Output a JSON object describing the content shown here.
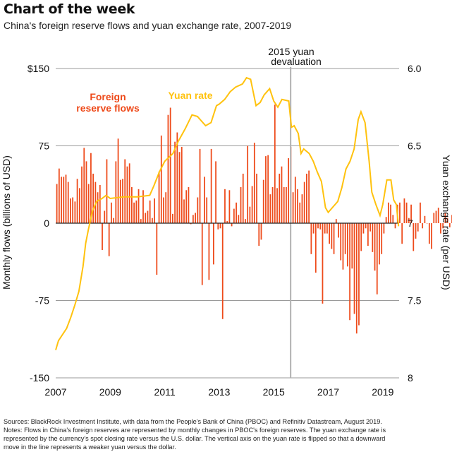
{
  "header": {
    "title": "Chart of the week",
    "subtitle": "China's foreign reserve flows and yuan exchange rate, 2007-2019"
  },
  "footnote": {
    "line1": "Sources: BlackRock Investment Institute, with data from the People's Bank of China (PBOC) and Refinitiv Datastream, August 2019.",
    "line2": "Notes: Flows in China's foreign reserves are represented by monthly changes in PBOC's foreign reserves. The yuan exchange rate is",
    "line3": "represented by the currency's spot closing rate versus the U.S. dollar. The vertical axis on the yuan rate is flipped so that a downward",
    "line4": "move in the line represents a weaker yuan versus the dollar."
  },
  "colors": {
    "reserve_bars": "#ee4a1a",
    "reserve_label": "#ee4a1a",
    "yuan_line": "#ffc20e",
    "yuan_label": "#ffc20e",
    "grid": "#9a9a9a",
    "zero_line": "#222222",
    "devaluation_line": "#b0b0b0"
  },
  "chart_data": {
    "type": "bar+line",
    "title": "China's foreign reserve flows and yuan exchange rate, 2007-2019",
    "xlabel": "",
    "x_ticks": [
      "2007",
      "2009",
      "2011",
      "2013",
      "2015",
      "2017",
      "2019"
    ],
    "x_range": [
      2007,
      2019.6
    ],
    "left_axis": {
      "label": "Monthly flows (billions of USD)",
      "ticks": [
        150,
        75,
        0,
        -75,
        -150
      ],
      "tick_labels": [
        "$150",
        "75",
        "0",
        "-75",
        "-150"
      ],
      "range": [
        -150,
        150
      ]
    },
    "right_axis": {
      "label": "Yuan exchange rate (per USD)",
      "ticks": [
        6.0,
        6.5,
        7.0,
        7.5,
        8.0
      ],
      "tick_labels": [
        "6.0",
        "6.5",
        "7",
        "7.5",
        "8"
      ],
      "range": [
        6.0,
        8.0
      ],
      "inverted": true
    },
    "annotation": {
      "label_line1": "2015 yuan",
      "label_line2": "devaluation",
      "x": 2015.62
    },
    "grid": "horizontal",
    "series": [
      {
        "name": "Foreign reserve flows",
        "type": "bar",
        "axis": "left",
        "start": 2007.0,
        "step_months": 1,
        "values": [
          38,
          53,
          45,
          45,
          47,
          40,
          24,
          25,
          21,
          43,
          34,
          55,
          73,
          60,
          38,
          68,
          48,
          40,
          30,
          37,
          -26,
          12,
          62,
          -32,
          20,
          5,
          60,
          82,
          42,
          43,
          62,
          55,
          58,
          35,
          20,
          22,
          33,
          4,
          32,
          10,
          12,
          22,
          5,
          24,
          -50,
          50,
          85,
          25,
          30,
          105,
          112,
          9,
          79,
          88,
          69,
          74,
          23,
          32,
          35,
          -1,
          8,
          10,
          25,
          72,
          -60,
          45,
          25,
          -55,
          72,
          -40,
          60,
          -6,
          -5,
          -93,
          33,
          2,
          32,
          -3,
          14,
          20,
          8,
          35,
          48,
          4,
          75,
          16,
          36,
          78,
          48,
          -22,
          -16,
          42,
          65,
          66,
          28,
          35,
          115,
          34,
          48,
          55,
          35,
          35,
          63,
          74,
          30,
          45,
          33,
          20,
          28,
          40,
          48,
          51,
          -30,
          -10,
          -48,
          -5,
          -6,
          -78,
          -10,
          -10,
          -20,
          -25,
          -30,
          4,
          -14,
          -36,
          -45,
          -30,
          -42,
          -94,
          -44,
          -88,
          -107,
          -99,
          -27,
          -10,
          -5,
          -22,
          -8,
          -28,
          -46,
          -69,
          -40,
          -30,
          -10,
          6,
          20,
          18,
          8,
          -5,
          18,
          20,
          -20,
          24,
          20,
          5,
          18,
          -27,
          -15,
          -8,
          20,
          -5,
          7,
          0,
          -20,
          -25,
          10,
          12,
          15,
          -10,
          -5,
          10,
          5,
          -4,
          8,
          -15
        ]
      },
      {
        "name": "Yuan rate",
        "type": "line",
        "axis": "right",
        "points": [
          [
            2007.0,
            7.82
          ],
          [
            2007.1,
            7.76
          ],
          [
            2007.25,
            7.72
          ],
          [
            2007.4,
            7.68
          ],
          [
            2007.55,
            7.61
          ],
          [
            2007.7,
            7.53
          ],
          [
            2007.85,
            7.44
          ],
          [
            2008.0,
            7.28
          ],
          [
            2008.1,
            7.13
          ],
          [
            2008.2,
            7.04
          ],
          [
            2008.35,
            6.92
          ],
          [
            2008.5,
            6.86
          ],
          [
            2008.7,
            6.84
          ],
          [
            2008.85,
            6.82
          ],
          [
            2009.0,
            6.84
          ],
          [
            2009.5,
            6.83
          ],
          [
            2010.0,
            6.83
          ],
          [
            2010.45,
            6.82
          ],
          [
            2010.6,
            6.76
          ],
          [
            2010.8,
            6.67
          ],
          [
            2011.0,
            6.6
          ],
          [
            2011.3,
            6.55
          ],
          [
            2011.5,
            6.47
          ],
          [
            2011.75,
            6.39
          ],
          [
            2012.0,
            6.3
          ],
          [
            2012.2,
            6.31
          ],
          [
            2012.5,
            6.37
          ],
          [
            2012.7,
            6.35
          ],
          [
            2012.9,
            6.24
          ],
          [
            2013.0,
            6.23
          ],
          [
            2013.2,
            6.2
          ],
          [
            2013.4,
            6.15
          ],
          [
            2013.6,
            6.12
          ],
          [
            2013.85,
            6.1
          ],
          [
            2014.0,
            6.06
          ],
          [
            2014.15,
            6.07
          ],
          [
            2014.35,
            6.24
          ],
          [
            2014.5,
            6.22
          ],
          [
            2014.65,
            6.17
          ],
          [
            2014.85,
            6.13
          ],
          [
            2015.0,
            6.21
          ],
          [
            2015.15,
            6.25
          ],
          [
            2015.3,
            6.2
          ],
          [
            2015.55,
            6.21
          ],
          [
            2015.65,
            6.38
          ],
          [
            2015.75,
            6.37
          ],
          [
            2015.9,
            6.42
          ],
          [
            2016.0,
            6.55
          ],
          [
            2016.1,
            6.52
          ],
          [
            2016.3,
            6.55
          ],
          [
            2016.45,
            6.6
          ],
          [
            2016.6,
            6.67
          ],
          [
            2016.75,
            6.73
          ],
          [
            2016.9,
            6.9
          ],
          [
            2017.0,
            6.93
          ],
          [
            2017.2,
            6.89
          ],
          [
            2017.35,
            6.86
          ],
          [
            2017.5,
            6.77
          ],
          [
            2017.65,
            6.65
          ],
          [
            2017.8,
            6.6
          ],
          [
            2017.95,
            6.52
          ],
          [
            2018.1,
            6.33
          ],
          [
            2018.2,
            6.28
          ],
          [
            2018.35,
            6.35
          ],
          [
            2018.5,
            6.6
          ],
          [
            2018.6,
            6.8
          ],
          [
            2018.75,
            6.88
          ],
          [
            2018.9,
            6.95
          ],
          [
            2019.0,
            6.88
          ],
          [
            2019.15,
            6.72
          ],
          [
            2019.3,
            6.72
          ],
          [
            2019.4,
            6.85
          ],
          [
            2019.5,
            6.88
          ],
          [
            2019.58,
            7.02
          ]
        ]
      }
    ],
    "labels": {
      "reserve_line1": "Foreign",
      "reserve_line2": "reserve flows",
      "yuan": "Yuan rate"
    }
  }
}
